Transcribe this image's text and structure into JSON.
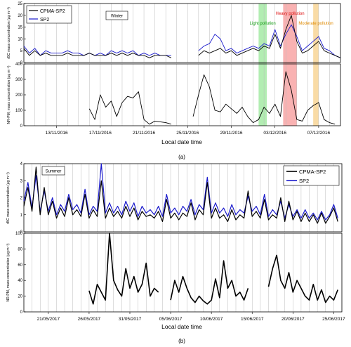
{
  "figure": {
    "caption_a": "(a)",
    "caption_b": "(b)"
  },
  "chart_data": [
    {
      "type": "line",
      "panel": "a",
      "season_label": "Winter",
      "xlabel": "Local date time",
      "x_ticks": [
        "13/11/2016",
        "17/11/2016",
        "21/11/2016",
        "25/11/2016",
        "29/11/2016",
        "03/12/2016",
        "07/12/2016"
      ],
      "x_range": [
        "10/11/2016",
        "09/12/2016"
      ],
      "legend": [
        "CPMA-SP2",
        "SP2"
      ],
      "legend_position": "top-left",
      "series_colors": {
        "CPMA-SP2": "#000000",
        "SP2": "#1a1acc"
      },
      "shaded_events": [
        {
          "label": "Light pollution",
          "color": "#22cc22",
          "start": "1/12/2016 12:00",
          "end": "2/12/2016 06:00"
        },
        {
          "label": "Heavy pollution",
          "color": "#ee2222",
          "start": "3/12/2016 18:00",
          "end": "5/12/2016 00:00"
        },
        {
          "label": "Moderate pollution",
          "color": "#ee9900",
          "start": "6/12/2016 12:00",
          "end": "7/12/2016 00:00"
        }
      ],
      "upper": {
        "ylabel": "rBC mass concentration (μg m⁻³)",
        "ylim": [
          0,
          25
        ],
        "y_ticks": [
          0,
          5,
          10,
          15,
          20,
          25
        ],
        "days": [
          10,
          10.5,
          11,
          11.5,
          12,
          12.5,
          13,
          13.5,
          14,
          14.5,
          15,
          15.5,
          16,
          16.5,
          17,
          17.5,
          18,
          18.5,
          19,
          19.5,
          20,
          20.5,
          21,
          21.5,
          22,
          22.5,
          23,
          23.5,
          24,
          24.5,
          25,
          25.5,
          26,
          26.5,
          27,
          27.5,
          28,
          28.5,
          29,
          29.5,
          30,
          30.5,
          31,
          31.5,
          32,
          32.5,
          33,
          33.5,
          34,
          34.5,
          35,
          35.5,
          36,
          36.5,
          37,
          37.5,
          38,
          38.5,
          39
        ],
        "series": [
          {
            "name": "CPMA-SP2",
            "values": [
              6,
              3,
              5,
              3,
              4,
              3,
              3,
              3,
              4,
              3,
              3,
              3,
              4,
              3,
              3,
              3,
              4,
              3,
              4,
              3,
              4,
              3,
              3,
              2,
              3,
              3,
              3,
              2,
              null,
              null,
              null,
              null,
              3,
              5,
              4,
              5,
              6,
              4,
              5,
              3,
              4,
              5,
              6,
              5,
              7,
              6,
              12,
              6,
              14,
              20,
              9,
              4,
              5,
              7,
              9,
              5,
              4,
              3,
              2
            ]
          },
          {
            "name": "SP2",
            "values": [
              7,
              4,
              6,
              3,
              5,
              4,
              4,
              4,
              5,
              4,
              4,
              3,
              4,
              3,
              4,
              3,
              5,
              4,
              5,
              4,
              5,
              3,
              4,
              3,
              4,
              3,
              3,
              3,
              null,
              null,
              null,
              null,
              5,
              7,
              8,
              12,
              10,
              5,
              6,
              4,
              5,
              6,
              7,
              6,
              8,
              7,
              14,
              7,
              12,
              16,
              11,
              5,
              7,
              9,
              11,
              6,
              5,
              3,
              2
            ]
          }
        ]
      },
      "lower": {
        "ylabel": "NR-PM₁ mass concentration (μg m⁻³)",
        "ylim": [
          0,
          400
        ],
        "y_ticks": [
          0,
          100,
          200,
          300,
          400
        ],
        "series": [
          {
            "name": "NR-PM1",
            "days": [
              16,
              16.5,
              17,
              17.5,
              18,
              18.5,
              19,
              19.5,
              20,
              20.5,
              21,
              21.5,
              22,
              23,
              23.5,
              25.5,
              26,
              26.5,
              27,
              27.5,
              28,
              28.5,
              29,
              29.5,
              30,
              30.5,
              31,
              31.5,
              32,
              32.5,
              33,
              33.5,
              34,
              34.5,
              35,
              35.5,
              36,
              36.5,
              37,
              37.5,
              38,
              38.5
            ],
            "values": [
              110,
              40,
              200,
              120,
              160,
              60,
              150,
              190,
              180,
              220,
              40,
              10,
              30,
              20,
              10,
              60,
              200,
              330,
              250,
              100,
              90,
              140,
              110,
              80,
              120,
              60,
              20,
              40,
              120,
              80,
              140,
              60,
              350,
              230,
              40,
              30,
              100,
              130,
              150,
              40,
              20,
              10
            ]
          }
        ]
      }
    },
    {
      "type": "line",
      "panel": "b",
      "season_label": "Summer",
      "xlabel": "Local date time",
      "x_ticks": [
        "21/05/2017",
        "26/05/2017",
        "31/05/2017",
        "05/06/2017",
        "10/06/2017",
        "15/06/2017",
        "20/06/2017",
        "25/06/2017"
      ],
      "x_range": [
        "18/05/2017",
        "26/06/2017"
      ],
      "legend": [
        "CPMA-SP2",
        "SP2"
      ],
      "legend_position": "top-right",
      "series_colors": {
        "CPMA-SP2": "#000000",
        "SP2": "#1a1acc"
      },
      "upper": {
        "ylabel": "rBC mass concentration (μg m⁻³)",
        "ylim": [
          0,
          4
        ],
        "y_ticks": [
          0,
          1,
          2,
          3,
          4
        ],
        "days": [
          0,
          0.5,
          1,
          1.5,
          2,
          2.5,
          3,
          3.5,
          4,
          4.5,
          5,
          5.5,
          6,
          6.5,
          7,
          7.5,
          8,
          8.5,
          9,
          9.5,
          10,
          10.5,
          11,
          11.5,
          12,
          12.5,
          13,
          13.5,
          14,
          14.5,
          15,
          15.5,
          16,
          16.5,
          17,
          17.5,
          18,
          18.5,
          19,
          19.5,
          20,
          20.5,
          21,
          21.5,
          22,
          22.5,
          23,
          23.5,
          24,
          24.5,
          25,
          25.5,
          26,
          26.5,
          27,
          27.5,
          28,
          28.5,
          29,
          29.5,
          30,
          30.5,
          31,
          31.5,
          32,
          32.5,
          33,
          33.5,
          34,
          34.5,
          35,
          35.5,
          36,
          36.5,
          37,
          37.5,
          38,
          38.5
        ],
        "series": [
          {
            "name": "CPMA-SP2",
            "values": [
              1.5,
              2.6,
              1.2,
              3.8,
              1.0,
              2.6,
              1.0,
              1.8,
              0.8,
              1.4,
              0.9,
              2.0,
              1.0,
              1.3,
              0.9,
              2.2,
              0.8,
              1.3,
              0.9,
              3.0,
              0.8,
              1.4,
              0.9,
              1.2,
              0.8,
              1.5,
              0.9,
              1.4,
              0.7,
              1.2,
              0.9,
              1.0,
              0.8,
              1.2,
              0.6,
              1.9,
              0.8,
              1.1,
              0.7,
              1.1,
              0.9,
              1.7,
              0.7,
              1.3,
              1.0,
              2.9,
              0.8,
              1.4,
              0.8,
              1.0,
              0.6,
              1.3,
              0.7,
              1.0,
              0.8,
              2.4,
              0.9,
              1.2,
              0.8,
              1.9,
              0.7,
              1.0,
              0.8,
              2.0,
              0.6,
              1.8,
              0.7,
              1.2,
              0.6,
              1.1,
              0.6,
              1.0,
              0.5,
              1.1,
              0.5,
              0.9,
              1.4,
              0.6
            ]
          },
          {
            "name": "SP2",
            "values": [
              1.8,
              2.9,
              1.4,
              3.3,
              1.2,
              2.4,
              1.2,
              2.0,
              1.0,
              1.6,
              1.2,
              2.2,
              1.3,
              1.6,
              1.1,
              2.5,
              1.0,
              1.5,
              1.2,
              4.0,
              1.1,
              1.7,
              1.1,
              1.5,
              1.0,
              1.8,
              1.2,
              1.7,
              0.9,
              1.5,
              1.1,
              1.3,
              1.0,
              1.5,
              0.9,
              2.2,
              1.1,
              1.4,
              1.0,
              1.5,
              1.2,
              1.9,
              1.0,
              1.6,
              1.3,
              3.2,
              1.1,
              1.7,
              1.1,
              1.4,
              0.9,
              1.6,
              1.0,
              1.3,
              1.1,
              2.1,
              1.2,
              1.5,
              1.0,
              2.2,
              0.9,
              1.3,
              1.0,
              1.8,
              0.8,
              1.6,
              0.9,
              1.3,
              0.8,
              1.3,
              0.8,
              1.1,
              0.7,
              1.2,
              0.7,
              1.0,
              1.6,
              0.8
            ]
          }
        ]
      },
      "lower": {
        "ylabel": "NR-PM₁ mass concentration (μg m⁻³)",
        "ylim": [
          0,
          100
        ],
        "y_ticks": [
          0,
          20,
          40,
          60,
          80,
          100
        ],
        "series": [
          {
            "name": "NR-PM1",
            "days": [
              8,
              8.5,
              9,
              9.5,
              10,
              10.5,
              11,
              11.5,
              12,
              12.5,
              13,
              13.5,
              14,
              14.5,
              15,
              15.5,
              16,
              16.5,
              18,
              18.5,
              19,
              19.5,
              20,
              20.5,
              21,
              21.5,
              22,
              22.5,
              23,
              23.5,
              24,
              24.5,
              25,
              25.5,
              26,
              26.5,
              27,
              27.5,
              30,
              30.5,
              31,
              31.5,
              32,
              32.5,
              33,
              33.5,
              34,
              34.5,
              35,
              35.5,
              36,
              36.5,
              37,
              37.5,
              38,
              38.5
            ],
            "values": [
              27,
              10,
              35,
              25,
              15,
              102,
              40,
              28,
              20,
              55,
              30,
              45,
              25,
              35,
              62,
              20,
              30,
              25,
              15,
              40,
              25,
              45,
              30,
              18,
              12,
              20,
              14,
              10,
              15,
              42,
              18,
              65,
              30,
              40,
              20,
              25,
              15,
              30,
              32,
              55,
              72,
              40,
              30,
              50,
              25,
              40,
              30,
              20,
              15,
              35,
              15,
              28,
              12,
              20,
              15,
              28
            ]
          }
        ]
      }
    }
  ]
}
